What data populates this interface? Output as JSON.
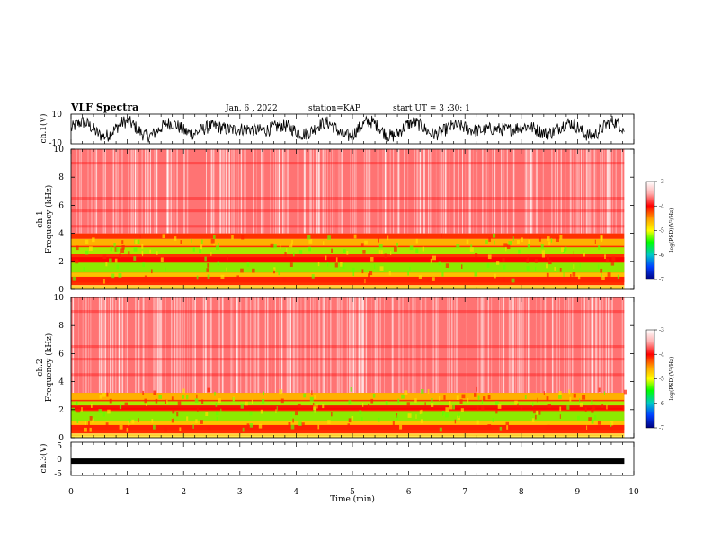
{
  "header": {
    "title": "VLF Spectra",
    "date": "Jan. 6 , 2022",
    "station": "station=KAP",
    "start": "start UT = 3 :30: 1"
  },
  "chart_data": [
    {
      "type": "line",
      "name": "ch.1 waveform",
      "ylabel": "ch.1(V)",
      "ylim": [
        -10,
        10
      ],
      "yticks": [
        "10",
        "-10"
      ],
      "xlim": [
        0,
        10
      ],
      "x_extent_min": 9.83
    },
    {
      "type": "heatmap",
      "name": "ch.1 spectrogram",
      "ylabel": "ch.1\nFrequency (kHz)",
      "ylim": [
        0,
        10
      ],
      "yticks": [
        "0",
        "2",
        "4",
        "6",
        "8",
        "10"
      ],
      "xlim": [
        0,
        10
      ],
      "x_extent_min": 9.83,
      "bands_khz": [
        {
          "range": [
            4.0,
            10.0
          ],
          "level": "high (-3 to -4)"
        },
        {
          "range": [
            3.6,
            4.0
          ],
          "level": "-4"
        },
        {
          "range": [
            0.3,
            3.6
          ],
          "level": "-4 to -5.5"
        },
        {
          "range": [
            0.0,
            0.3
          ],
          "level": "-4 to -5"
        }
      ],
      "colorbar": {
        "label": "log(PSD)(V²/Hz)",
        "ticks": [
          "-3",
          "-4",
          "-5",
          "-6",
          "-7"
        ],
        "range": [
          -7,
          -3
        ]
      }
    },
    {
      "type": "heatmap",
      "name": "ch.2 spectrogram",
      "ylabel": "ch.2\nFrequency (kHz)",
      "ylim": [
        0,
        10
      ],
      "yticks": [
        "0",
        "2",
        "4",
        "6",
        "8",
        "10"
      ],
      "xlim": [
        0,
        10
      ],
      "x_extent_min": 9.83,
      "bands_khz": [
        {
          "range": [
            3.2,
            10.0
          ],
          "level": "high (-3 to -4)"
        },
        {
          "range": [
            0.3,
            3.2
          ],
          "level": "-4 to -5.5"
        },
        {
          "range": [
            0.0,
            0.3
          ],
          "level": "-4 to -5"
        }
      ],
      "colorbar": {
        "label": "log(PSD)(V²/Hz)",
        "ticks": [
          "-3",
          "-4",
          "-5",
          "-6",
          "-7"
        ],
        "range": [
          -7,
          -3
        ]
      }
    },
    {
      "type": "line",
      "name": "ch.3 waveform",
      "ylabel": "ch.3(V)",
      "ylim": [
        -5,
        5
      ],
      "yticks": [
        "5",
        "0",
        "-5"
      ],
      "approx_value_v": -0.7,
      "xlim": [
        0,
        10
      ],
      "x_extent_min": 9.83,
      "xlabel": "Time (min)",
      "xticks": [
        "0",
        "1",
        "2",
        "3",
        "4",
        "5",
        "6",
        "7",
        "8",
        "9",
        "10"
      ]
    }
  ],
  "colors": {
    "line": "#000000",
    "spectro_high": "#ff2020",
    "spectro_mid": "#ffb400",
    "spectro_low": "#7cff00",
    "background": "#ffffff"
  }
}
